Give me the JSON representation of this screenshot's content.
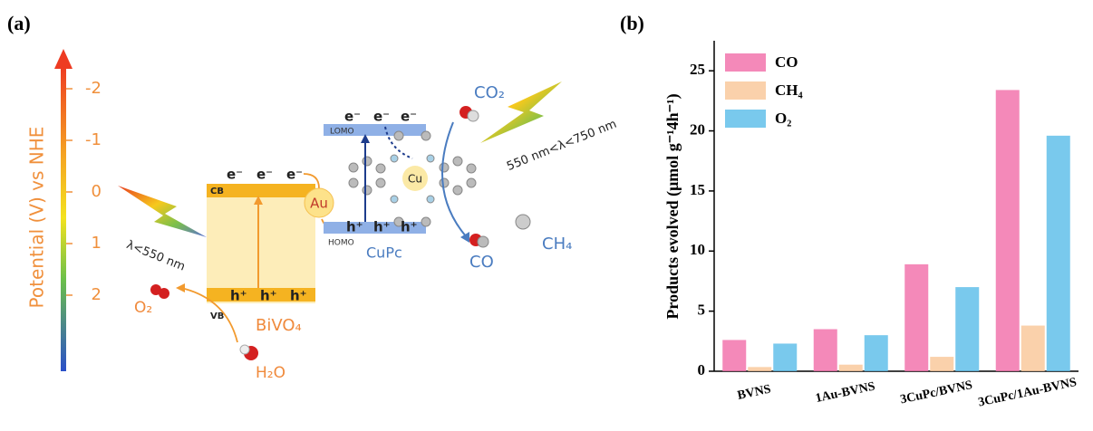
{
  "panel_labels": [
    "(a)",
    "(b)"
  ],
  "diagram": {
    "potential_axis": {
      "label": "Potential (V) vs NHE",
      "ticks": [
        "-2",
        "-1",
        "0",
        "1",
        "2"
      ]
    },
    "bivo4": {
      "name": "BiVO₄",
      "cb": "CB",
      "vb": "VB",
      "electrons": [
        "e⁻",
        "e⁻",
        "e⁻"
      ],
      "holes": [
        "h⁺",
        "h⁺",
        "h⁺"
      ],
      "light": "λ<550 nm",
      "oxidation_product": "O₂",
      "reactant": "H₂O"
    },
    "au": "Au",
    "cupc": {
      "name": "CuPc",
      "lomo": "LOMO",
      "homo": "HOMO",
      "electrons": [
        "e⁻",
        "e⁻",
        "e⁻"
      ],
      "holes": [
        "h⁺",
        "h⁺",
        "h⁺"
      ],
      "center": "Cu",
      "light": "550 nm<λ<750 nm",
      "reactant": "CO₂",
      "products": [
        "CO",
        "CH₄"
      ]
    }
  },
  "chart_data": {
    "type": "bar",
    "ylabel": "Products evolved (μmol g⁻¹4h⁻¹)",
    "categories": [
      "BVNS",
      "1Au-BVNS",
      "3CuPc/BVNS",
      "3CuPc/1Au-BVNS"
    ],
    "series": [
      {
        "name": "CO",
        "color": "#f274ad",
        "values": [
          2.6,
          3.5,
          8.9,
          23.4
        ]
      },
      {
        "name": "CH₄",
        "color": "#f9c99c",
        "values": [
          0.35,
          0.55,
          1.2,
          3.8
        ]
      },
      {
        "name": "O₂",
        "color": "#62bfea",
        "values": [
          2.3,
          3.0,
          7.0,
          19.6
        ]
      }
    ],
    "ylim": [
      0,
      27.5
    ],
    "yticks": [
      0,
      5,
      10,
      15,
      20,
      25
    ],
    "legend": "upper left"
  }
}
